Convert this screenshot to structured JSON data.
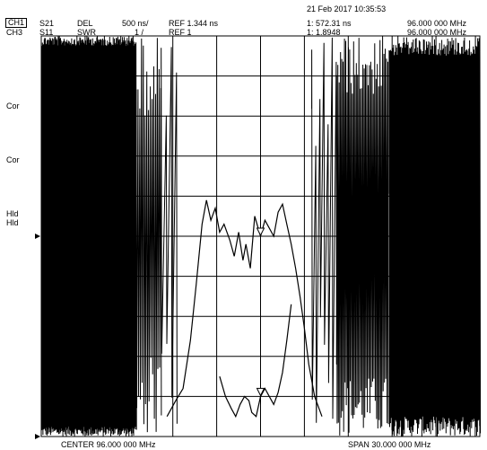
{
  "header": {
    "timestamp": "21 Feb 2017 10:35:53",
    "ch1": {
      "label": "CH1",
      "param": "S21",
      "format": "DEL",
      "scale": "500 ns/",
      "ref": "REF 1.344 ns",
      "marker": "1: 572.31 ns",
      "freq": "96.000 000 MHz"
    },
    "ch3": {
      "label": "CH3",
      "param": "S11",
      "format": "SWR",
      "scale": "1 /",
      "ref": "REF 1",
      "marker": "1: 1.8948",
      "freq": "96.000 000 MHz"
    }
  },
  "side_labels": [
    "Cor",
    "Cor",
    "Hld",
    "Hld"
  ],
  "footer": {
    "center": "CENTER 96.000 000 MHz",
    "span": "SPAN 30.000 000 MHz"
  },
  "chart_data": {
    "type": "line",
    "x_center_mhz": 96,
    "x_span_mhz": 30,
    "x_range_mhz": [
      81,
      111
    ],
    "grid": true,
    "series": [
      {
        "channel": "CH1",
        "format": "group delay",
        "marker_freq_mhz": 96,
        "marker_value": "572.31 ns",
        "points_mhz_div": [
          [
            89.6,
            0.5
          ],
          [
            90.2,
            0.9
          ],
          [
            90.7,
            1.2
          ],
          [
            91.2,
            2.4
          ],
          [
            91.6,
            3.8
          ],
          [
            92.0,
            5.3
          ],
          [
            92.3,
            5.9
          ],
          [
            92.6,
            5.4
          ],
          [
            92.9,
            5.7
          ],
          [
            93.2,
            5.1
          ],
          [
            93.5,
            5.3
          ],
          [
            93.9,
            4.9
          ],
          [
            94.2,
            4.5
          ],
          [
            94.5,
            5.1
          ],
          [
            94.8,
            4.4
          ],
          [
            95.0,
            4.8
          ],
          [
            95.3,
            4.2
          ],
          [
            95.6,
            5.5
          ],
          [
            96.0,
            5.0
          ],
          [
            96.3,
            5.4
          ],
          [
            96.6,
            5.2
          ],
          [
            96.9,
            5.0
          ],
          [
            97.2,
            5.6
          ],
          [
            97.5,
            5.8
          ],
          [
            97.8,
            5.3
          ],
          [
            98.1,
            4.8
          ],
          [
            98.4,
            4.2
          ],
          [
            98.7,
            3.5
          ],
          [
            99.0,
            2.7
          ],
          [
            99.3,
            1.8
          ],
          [
            99.7,
            1.0
          ],
          [
            100.2,
            0.5
          ]
        ]
      },
      {
        "channel": "CH3",
        "format": "SWR",
        "marker_freq_mhz": 96,
        "marker_value": "1.8948",
        "points_mhz_div": [
          [
            93.2,
            1.5
          ],
          [
            93.6,
            1.0
          ],
          [
            94.0,
            0.7
          ],
          [
            94.3,
            0.5
          ],
          [
            94.6,
            0.8
          ],
          [
            94.9,
            1.0
          ],
          [
            95.2,
            0.9
          ],
          [
            95.4,
            0.6
          ],
          [
            95.7,
            0.5
          ],
          [
            96.0,
            1.0
          ],
          [
            96.3,
            1.2
          ],
          [
            96.6,
            1.0
          ],
          [
            96.9,
            0.8
          ],
          [
            97.2,
            1.1
          ],
          [
            97.5,
            1.6
          ],
          [
            97.8,
            2.4
          ],
          [
            98.1,
            3.3
          ]
        ]
      }
    ],
    "y_divisions": 10
  }
}
